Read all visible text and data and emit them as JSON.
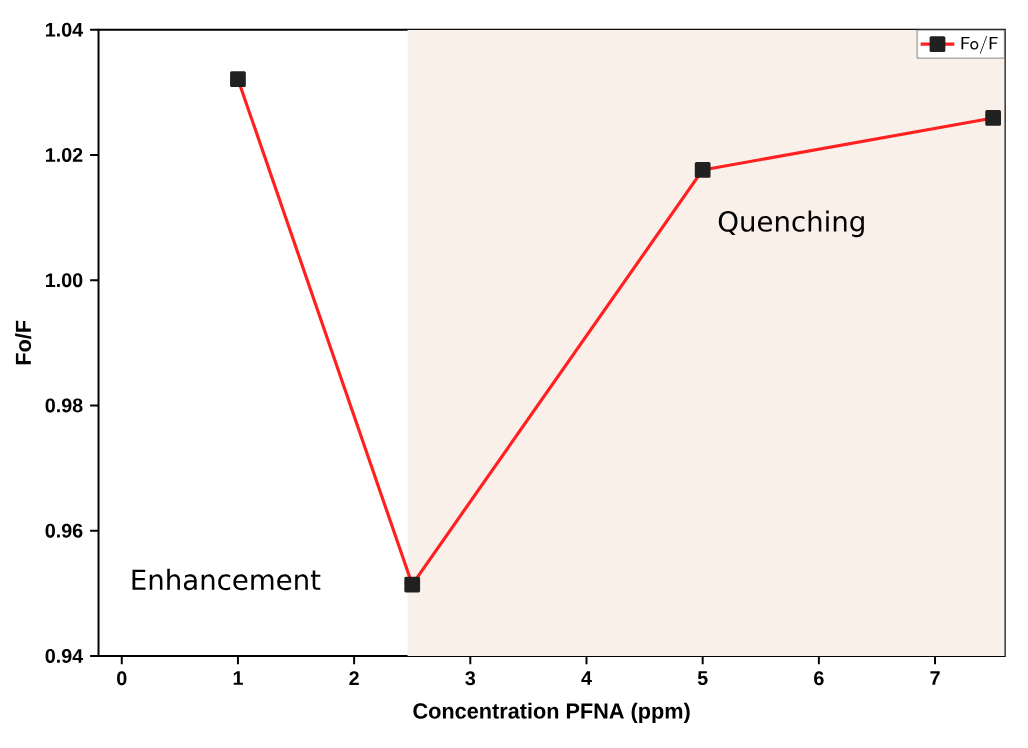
{
  "chart_data": {
    "type": "line",
    "xlabel": "Concentration PFNA (ppm)",
    "ylabel": "Fo/F",
    "x": [
      1,
      2.5,
      5,
      7.5
    ],
    "series": [
      {
        "name": "Fo/F",
        "color": "#ff2020",
        "values": [
          1.0321,
          0.9514,
          1.0176,
          1.0259
        ]
      }
    ],
    "xlim": [
      -0.2,
      7.6
    ],
    "ylim": [
      0.94,
      1.04
    ],
    "xticks": [
      0,
      1,
      2,
      3,
      4,
      5,
      6,
      7
    ],
    "yticks": [
      {
        "value": 0.94,
        "label": "0.94"
      },
      {
        "value": 0.96,
        "label": "0.96"
      },
      {
        "value": 0.98,
        "label": "0.98"
      },
      {
        "value": 1.0,
        "label": "1.00"
      },
      {
        "value": 1.02,
        "label": "1.02"
      },
      {
        "value": 1.04,
        "label": "1.04"
      }
    ],
    "bands": [
      {
        "axis": "x",
        "from": 2.46,
        "to": 7.6,
        "color": "#faf0ea"
      }
    ],
    "annotations": [
      "Enhancement",
      "Quenching"
    ],
    "marker": "square",
    "line_style": "solid",
    "legend": "top right",
    "grid": false
  }
}
